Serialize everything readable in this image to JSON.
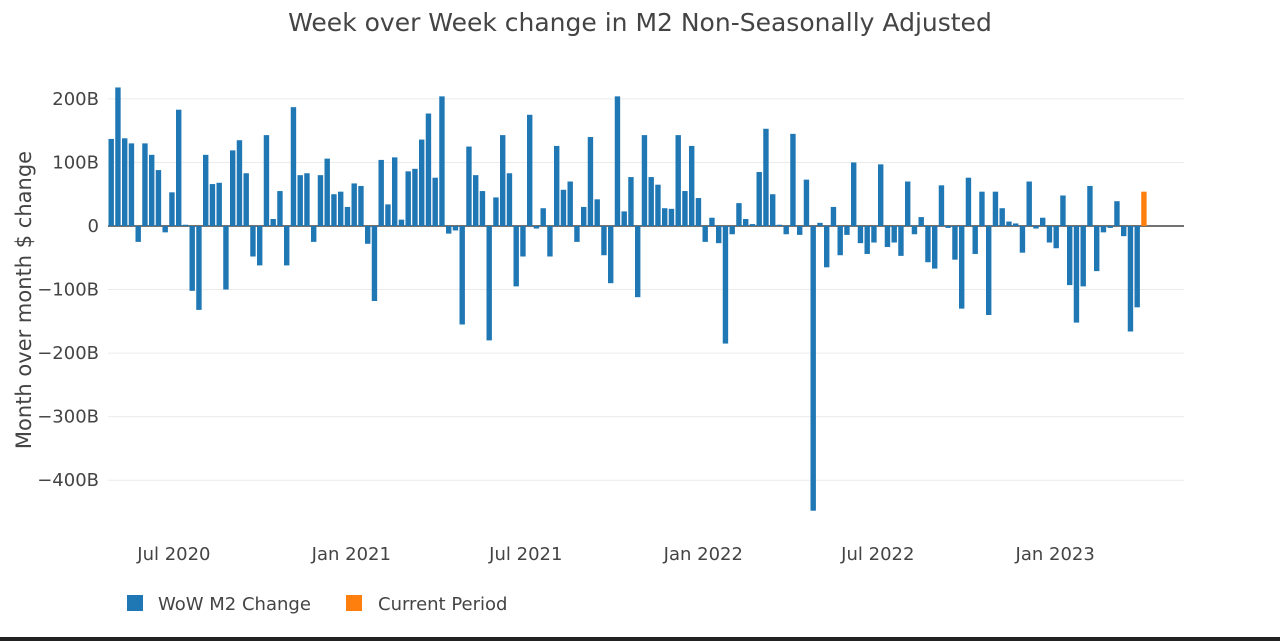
{
  "chart_data": {
    "type": "bar",
    "title": "Week over Week change in M2 Non-Seasonally Adjusted",
    "xlabel": "",
    "ylabel": "Month over month $ change",
    "ylim": [
      -480,
      240
    ],
    "y_unit": "B",
    "yticks": [
      {
        "value": 200,
        "label": "200B"
      },
      {
        "value": 100,
        "label": "100B"
      },
      {
        "value": 0,
        "label": "0"
      },
      {
        "value": -100,
        "label": "−100B"
      },
      {
        "value": -200,
        "label": "−200B"
      },
      {
        "value": -300,
        "label": "−300B"
      },
      {
        "value": -400,
        "label": "−400B"
      }
    ],
    "xticks": [
      {
        "date": "2020-07-01",
        "label": "Jul 2020"
      },
      {
        "date": "2021-01-01",
        "label": "Jan 2021"
      },
      {
        "date": "2021-07-01",
        "label": "Jul 2021"
      },
      {
        "date": "2022-01-01",
        "label": "Jan 2022"
      },
      {
        "date": "2022-07-01",
        "label": "Jul 2022"
      },
      {
        "date": "2023-01-01",
        "label": "Jan 2023"
      }
    ],
    "x_start": "2020-04-27",
    "week_days": 7,
    "grid": true,
    "legend_position": "bottom",
    "series": [
      {
        "name": "WoW M2 Change",
        "color": "#1f77b4",
        "values": [
          137,
          218,
          138,
          130,
          -25,
          130,
          112,
          88,
          -10,
          53,
          183,
          2,
          -102,
          -132,
          112,
          66,
          68,
          -100,
          119,
          135,
          83,
          -48,
          -62,
          143,
          11,
          55,
          -62,
          187,
          80,
          83,
          -25,
          80,
          106,
          50,
          54,
          30,
          67,
          63,
          -28,
          -118,
          104,
          34,
          108,
          10,
          86,
          90,
          136,
          177,
          76,
          204,
          -12,
          -7,
          -155,
          125,
          80,
          55,
          -180,
          45,
          143,
          83,
          -95,
          -48,
          175,
          -4,
          28,
          -48,
          126,
          57,
          70,
          -25,
          30,
          140,
          42,
          -46,
          -90,
          204,
          23,
          77,
          -112,
          143,
          77,
          65,
          28,
          27,
          143,
          55,
          126,
          44,
          -25,
          13,
          -27,
          -185,
          -13,
          36,
          11,
          3,
          85,
          153,
          50,
          2,
          -13,
          145,
          -14,
          73,
          -448,
          5,
          -65,
          30,
          -46,
          -14,
          100,
          -27,
          -44,
          -26,
          97,
          -33,
          -26,
          -47,
          70,
          -13,
          14,
          -57,
          -67,
          64,
          -3,
          -53,
          -130,
          76,
          -44,
          54,
          -140,
          54,
          28,
          7,
          4,
          -42,
          70,
          -4,
          13,
          -26,
          -35,
          48,
          -93,
          -152,
          -95,
          63,
          -71,
          -10,
          -3,
          39,
          -16,
          -166,
          -128
        ]
      },
      {
        "name": "Current Period",
        "color": "#ff7f0e",
        "values": [
          54
        ]
      }
    ]
  }
}
